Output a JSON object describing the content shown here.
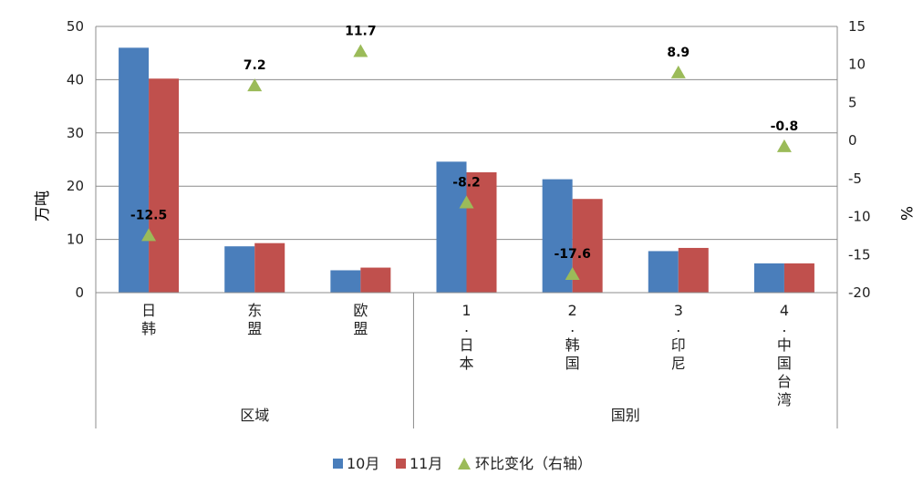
{
  "chart_data": {
    "type": "bar",
    "categories": [
      "日韩",
      "东盟",
      "欧盟",
      "1.日本",
      "2.韩国",
      "3.印尼",
      "4.中国台湾"
    ],
    "groups": [
      {
        "label": "区域",
        "count": 3
      },
      {
        "label": "国别",
        "count": 4
      }
    ],
    "series": [
      {
        "name": "10月",
        "type": "bar",
        "axis": "left",
        "color": "#4a7ebb",
        "values": [
          46,
          8.7,
          4.2,
          24.6,
          21.3,
          7.8,
          5.5
        ]
      },
      {
        "name": "11月",
        "type": "bar",
        "axis": "left",
        "color": "#c0504d",
        "values": [
          40.2,
          9.3,
          4.7,
          22.6,
          17.6,
          8.4,
          5.5
        ]
      },
      {
        "name": "环比变化（右轴）",
        "type": "scatter",
        "marker": "triangle",
        "axis": "right",
        "color": "#9bbb59",
        "values": [
          -12.5,
          7.2,
          11.7,
          -8.2,
          -17.6,
          8.9,
          -0.8
        ],
        "labels": [
          "-12.5",
          "7.2",
          "11.7",
          "-8.2",
          "-17.6",
          "8.9",
          "-0.8"
        ]
      }
    ],
    "ylabel": "万吨",
    "y2label": "%",
    "ylim": [
      0,
      50
    ],
    "y2lim": [
      -20,
      15
    ],
    "yticks": [
      "0",
      "10",
      "20",
      "30",
      "40",
      "50"
    ],
    "y2ticks": [
      "-20",
      "-15",
      "-10",
      "-5",
      "0",
      "5",
      "10",
      "15"
    ],
    "grid": true,
    "legend": "bottom"
  }
}
